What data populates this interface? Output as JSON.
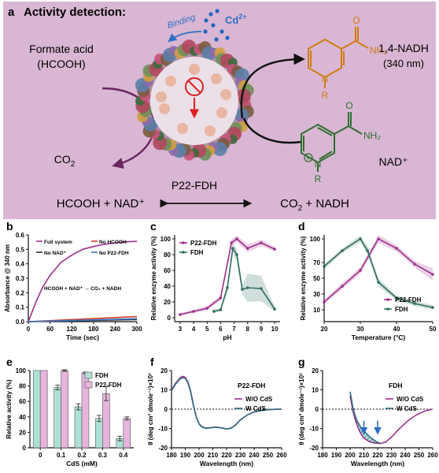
{
  "panel_a": {
    "letter": "a",
    "title": "Activity detection:",
    "substrate": [
      "Formate acid",
      "(HCOOH)"
    ],
    "co2": "CO₂",
    "nadh_name": [
      "1,4-NADH",
      "(340 nm)"
    ],
    "nad_label": "NAD⁺",
    "capsid_label": "P22-FDH",
    "binding": "Binding",
    "cd": "Cd²⁺",
    "eq_left": "HCOOH + NAD⁺",
    "eq_right": "CO₂ + NADH",
    "r_label": "R",
    "n_label": "N",
    "nh2_label": "NH₂",
    "o_label": "O",
    "colors": {
      "background": "#d9b6d3",
      "nadh": "#d07d10",
      "nad": "#2f6f2f",
      "arrow_left": "#6a2460",
      "arrow_blue": "#2b6fc4"
    }
  },
  "panels": [
    {
      "letter": "b",
      "type": "line"
    },
    {
      "letter": "c",
      "type": "line"
    },
    {
      "letter": "d",
      "type": "line"
    },
    {
      "letter": "e",
      "type": "bar"
    },
    {
      "letter": "f",
      "type": "line"
    },
    {
      "letter": "g",
      "type": "line"
    }
  ],
  "chart_data": [
    {
      "id": "b",
      "type": "line",
      "xlabel": "Time (sec)",
      "ylabel": "Absorbance @ 340 nm",
      "xlim": [
        0,
        300
      ],
      "ylim": [
        0,
        0.6
      ],
      "xticks": [
        0,
        60,
        120,
        180,
        240,
        300
      ],
      "yticks": [
        0.0,
        0.1,
        0.2,
        0.3,
        0.4,
        0.5,
        0.6
      ],
      "ytick_labels": [
        "0.0",
        "0.1",
        "0.2",
        "0.3",
        "0.4",
        "0.5",
        "0.6"
      ],
      "annotation": "HCOOH + NAD⁺ → CO₂ + NADH",
      "legend": [
        "Full system",
        "No HCOOH",
        "No NAD⁺",
        "No P22-FDH"
      ],
      "series": [
        {
          "name": "Full system",
          "color": "#a0308f",
          "x": [
            0,
            20,
            40,
            60,
            90,
            120,
            150,
            180,
            210,
            240,
            270,
            300
          ],
          "y": [
            0.0,
            0.13,
            0.24,
            0.32,
            0.41,
            0.46,
            0.5,
            0.52,
            0.535,
            0.545,
            0.552,
            0.556
          ]
        },
        {
          "name": "No HCOOH",
          "color": "#d23a2a",
          "x": [
            0,
            300
          ],
          "y": [
            0.0,
            0.035
          ]
        },
        {
          "name": "No NAD⁺",
          "color": "#2a2a2a",
          "x": [
            0,
            300
          ],
          "y": [
            0.0,
            0.015
          ]
        },
        {
          "name": "No P22-FDH",
          "color": "#3b78c2",
          "x": [
            0,
            300
          ],
          "y": [
            0.0,
            0.02
          ]
        }
      ]
    },
    {
      "id": "c",
      "type": "line",
      "xlabel": "pH",
      "ylabel": "Relative enzyme activity (%)",
      "xlim": [
        2.6,
        10.4
      ],
      "ylim": [
        -5,
        105
      ],
      "xticks": [
        3,
        4,
        5,
        6,
        7,
        8,
        9,
        10
      ],
      "yticks": [
        0,
        20,
        40,
        60,
        80,
        100
      ],
      "legend": [
        "P22-FDH",
        "FDH"
      ],
      "series": [
        {
          "name": "P22-FDH",
          "color": "#a0308f",
          "x": [
            3,
            4,
            5,
            6,
            6.8,
            7.2,
            8,
            9,
            10
          ],
          "y": [
            4,
            8,
            12,
            25,
            95,
            100,
            88,
            95,
            87
          ],
          "err": [
            2,
            2,
            3,
            3,
            5,
            4,
            5,
            4,
            3
          ]
        },
        {
          "name": "FDH",
          "color": "#2f6f60",
          "x": [
            5.5,
            6,
            6.5,
            6.9,
            7.2,
            7.6,
            8,
            9,
            10
          ],
          "y": [
            8,
            10,
            38,
            88,
            80,
            36,
            38,
            37,
            11
          ],
          "err": [
            2,
            2,
            6,
            5,
            8,
            6,
            18,
            16,
            3
          ]
        }
      ]
    },
    {
      "id": "d",
      "type": "line",
      "xlabel": "Temperature (°C)",
      "ylabel": "Relative enzyme activity (%)",
      "xlim": [
        20,
        50
      ],
      "ylim": [
        -5,
        105
      ],
      "xticks": [
        20,
        30,
        40,
        50
      ],
      "yticks": [
        10,
        30,
        50,
        70,
        100
      ],
      "legend": [
        "P22-FDH",
        "FDH"
      ],
      "series": [
        {
          "name": "P22-FDH",
          "color": "#a0308f",
          "x": [
            20,
            25,
            30,
            35,
            40,
            45,
            50
          ],
          "y": [
            20,
            40,
            60,
            100,
            88,
            68,
            55
          ],
          "err": [
            3,
            4,
            4,
            5,
            4,
            4,
            8
          ]
        },
        {
          "name": "FDH",
          "color": "#2f6f60",
          "x": [
            20,
            25,
            30,
            32,
            35,
            40,
            45,
            50
          ],
          "y": [
            65,
            85,
            100,
            85,
            45,
            25,
            18,
            13
          ],
          "err": [
            3,
            3,
            4,
            5,
            5,
            3,
            3,
            3
          ]
        }
      ]
    },
    {
      "id": "e",
      "type": "bar",
      "xlabel": "CdS (mM)",
      "ylabel": "Relative activity (%)",
      "categories": [
        "0",
        "0.1",
        "0.2",
        "0.3",
        "0.4"
      ],
      "ylim": [
        0,
        100
      ],
      "yticks": [
        0,
        20,
        40,
        60,
        80,
        100
      ],
      "legend": [
        "FDH",
        "P22-FDH"
      ],
      "series": [
        {
          "name": "FDH",
          "color": "#aee0d6",
          "values": [
            100,
            78,
            53,
            38,
            12
          ],
          "err": [
            0,
            3,
            4,
            4,
            3
          ]
        },
        {
          "name": "P22-FDH",
          "color": "#e6b4dc",
          "values": [
            100,
            100,
            97,
            70,
            38
          ],
          "err": [
            0,
            1,
            1,
            9,
            2
          ]
        }
      ]
    },
    {
      "id": "f",
      "type": "line",
      "title": "P22-FDH",
      "xlabel": "Wavelength (nm)",
      "ylabel": "θ (deg cm² dmole⁻¹)×10³",
      "xlim": [
        180,
        260
      ],
      "ylim": [
        -20,
        20
      ],
      "xticks": [
        180,
        190,
        200,
        210,
        220,
        230,
        240,
        250,
        260
      ],
      "yticks": [
        -20,
        -10,
        0,
        10,
        20
      ],
      "legend": [
        "W/O CdS",
        "W CdS"
      ],
      "series": [
        {
          "name": "W/O CdS",
          "color": "#a0308f",
          "x": [
            180,
            183,
            186,
            188,
            190,
            192,
            194,
            196,
            198,
            200,
            202,
            205,
            208,
            212,
            216,
            220,
            223,
            226,
            230,
            235,
            240,
            245,
            250,
            255,
            260
          ],
          "y": [
            10,
            13.5,
            16,
            17,
            16.5,
            14,
            9,
            2,
            -4,
            -7.5,
            -9,
            -9.8,
            -9.6,
            -9.2,
            -9.6,
            -10.2,
            -9.8,
            -8.5,
            -5.5,
            -3,
            -1.5,
            -0.7,
            -0.3,
            -0.1,
            0
          ]
        },
        {
          "name": "W CdS",
          "color": "#2f6f80",
          "x": [
            180,
            183,
            186,
            188,
            190,
            192,
            194,
            196,
            198,
            200,
            202,
            205,
            208,
            212,
            216,
            220,
            223,
            226,
            230,
            235,
            240,
            245,
            250,
            255,
            260
          ],
          "y": [
            9.5,
            13,
            15.5,
            16.3,
            16,
            13.5,
            8.5,
            1.5,
            -4.2,
            -7.7,
            -9.2,
            -9.9,
            -9.7,
            -9.3,
            -9.7,
            -10.3,
            -9.9,
            -8.6,
            -5.6,
            -3,
            -1.5,
            -0.7,
            -0.3,
            -0.1,
            0
          ]
        }
      ]
    },
    {
      "id": "g",
      "type": "line",
      "title": "FDH",
      "xlabel": "Wavelength (nm)",
      "ylabel": "θ (deg cm² dmole⁻¹)×10³",
      "xlim": [
        180,
        260
      ],
      "ylim": [
        -20,
        20
      ],
      "xticks": [
        180,
        190,
        200,
        210,
        220,
        230,
        240,
        250,
        260
      ],
      "yticks": [
        -20,
        -10,
        0,
        10,
        20
      ],
      "legend": [
        "W/O CdS",
        "W CdS"
      ],
      "series": [
        {
          "name": "W/O CdS",
          "color": "#a0308f",
          "x": [
            200,
            201,
            202,
            204,
            206,
            208,
            210,
            214,
            218,
            222,
            226,
            230,
            236,
            242,
            248,
            254,
            260
          ],
          "y": [
            7,
            3,
            -1,
            -6,
            -10,
            -13,
            -15,
            -16.8,
            -17.6,
            -17.8,
            -17,
            -14.5,
            -10,
            -6,
            -3,
            -1,
            0
          ]
        },
        {
          "name": "W CdS",
          "color": "#2f6f80",
          "x": [
            200,
            201,
            202,
            203,
            205,
            207,
            209,
            211,
            213,
            215,
            217,
            219,
            221,
            222
          ],
          "y": [
            9,
            5,
            1,
            -2,
            -6,
            -8.5,
            -10.5,
            -12,
            -13.5,
            -14.8,
            -15.8,
            -16.8,
            -17.5,
            -17.8
          ]
        }
      ]
    }
  ]
}
